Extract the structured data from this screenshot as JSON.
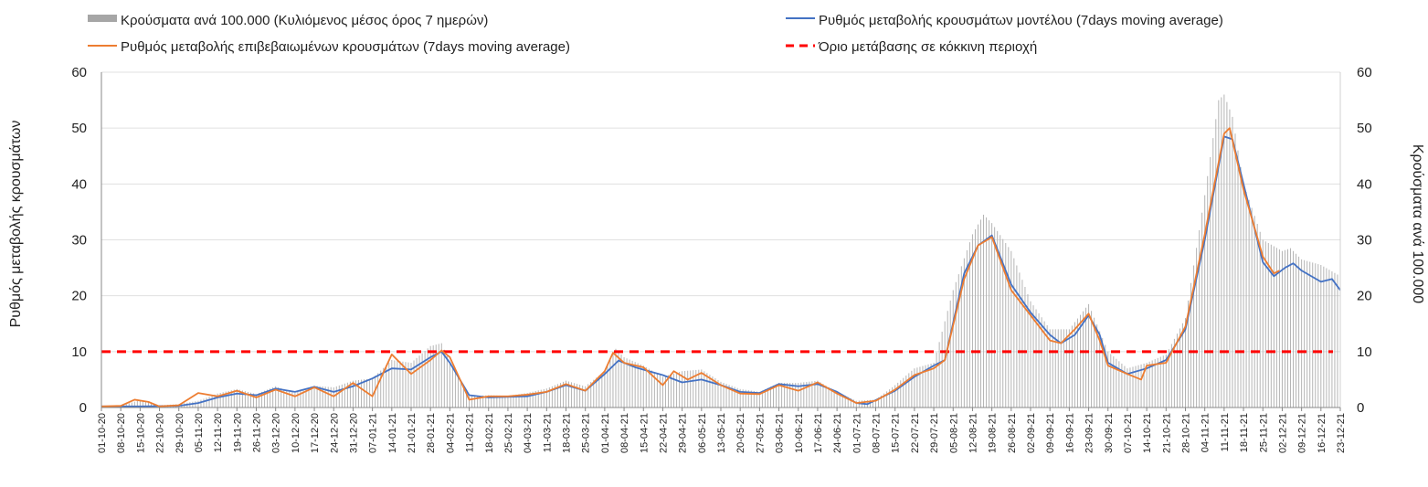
{
  "chart_data": {
    "type": "bar+line",
    "legend": [
      {
        "label": "Κρούσματα ανά 100.000 (Κυλιόμενος μέσος όρος 7 ημερών)",
        "kind": "bar",
        "color": "#a6a6a6"
      },
      {
        "label": "Ρυθμός μεταβολής κρουσμάτων μοντέλου (7days moving average)",
        "kind": "line",
        "color": "#4472c4"
      },
      {
        "label": "Ρυθμός μεταβολής επιβεβαιωμένων κρουσμάτων (7days moving average)",
        "kind": "line",
        "color": "#ed7d31"
      },
      {
        "label": "Όριο μετάβασης σε κόκκινη περιοχή",
        "kind": "dashed",
        "color": "#ff0000"
      }
    ],
    "ylabel_left": "Ρυθμός μεταβολής κρουσμάτων",
    "ylabel_right": "Κρούσματα ανά 100.000",
    "ylim": [
      0,
      60
    ],
    "yticks": [
      0,
      10,
      20,
      30,
      40,
      50,
      60
    ],
    "threshold": 10,
    "date_start": "2020-10-01",
    "date_end": "2021-12-23",
    "x_tick_labels": [
      "01-10-20",
      "08-10-20",
      "15-10-20",
      "22-10-20",
      "29-10-20",
      "05-11-20",
      "12-11-20",
      "19-11-20",
      "26-11-20",
      "03-12-20",
      "10-12-20",
      "17-12-20",
      "24-12-20",
      "31-12-20",
      "07-01-21",
      "14-01-21",
      "21-01-21",
      "28-01-21",
      "04-02-21",
      "11-02-21",
      "18-02-21",
      "25-02-21",
      "04-03-21",
      "11-03-21",
      "18-03-21",
      "25-03-21",
      "01-04-21",
      "08-04-21",
      "15-04-21",
      "22-04-21",
      "29-04-21",
      "06-05-21",
      "13-05-21",
      "20-05-21",
      "27-05-21",
      "03-06-21",
      "10-06-21",
      "17-06-21",
      "24-06-21",
      "01-07-21",
      "08-07-21",
      "15-07-21",
      "22-07-21",
      "29-07-21",
      "05-08-21",
      "12-08-21",
      "19-08-21",
      "26-08-21",
      "02-09-21",
      "09-09-21",
      "16-09-21",
      "23-09-21",
      "30-09-21",
      "07-10-21",
      "14-10-21",
      "21-10-21",
      "28-10-21",
      "04-11-21",
      "11-11-21",
      "18-11-21",
      "25-11-21",
      "02-12-21",
      "09-12-21",
      "16-12-21",
      "23-12-21"
    ],
    "series": [
      {
        "name": "Κρούσματα ανά 100.000 (Κυλιόμενος μέσος όρος 7 ημερών)",
        "kind": "bar",
        "points": [
          [
            "2020-10-01",
            0.3
          ],
          [
            "2020-10-08",
            0.4
          ],
          [
            "2020-10-15",
            1.3
          ],
          [
            "2020-10-22",
            0.4
          ],
          [
            "2020-10-29",
            0.6
          ],
          [
            "2020-11-05",
            1.2
          ],
          [
            "2020-11-12",
            2.5
          ],
          [
            "2020-11-19",
            3.3
          ],
          [
            "2020-11-26",
            2.4
          ],
          [
            "2020-12-03",
            3.8
          ],
          [
            "2020-12-10",
            2.6
          ],
          [
            "2020-12-17",
            3.9
          ],
          [
            "2020-12-24",
            3.6
          ],
          [
            "2020-12-31",
            4.8
          ],
          [
            "2021-01-07",
            5.2
          ],
          [
            "2021-01-14",
            8.5
          ],
          [
            "2021-01-21",
            8.0
          ],
          [
            "2021-01-28",
            11.0
          ],
          [
            "2021-02-01",
            11.5
          ],
          [
            "2021-02-04",
            8.0
          ],
          [
            "2021-02-11",
            2.0
          ],
          [
            "2021-02-18",
            2.2
          ],
          [
            "2021-02-25",
            2.1
          ],
          [
            "2021-03-04",
            2.6
          ],
          [
            "2021-03-11",
            3.4
          ],
          [
            "2021-03-18",
            4.8
          ],
          [
            "2021-03-25",
            3.8
          ],
          [
            "2021-04-01",
            6.5
          ],
          [
            "2021-04-05",
            10.5
          ],
          [
            "2021-04-08",
            9.0
          ],
          [
            "2021-04-15",
            7.5
          ],
          [
            "2021-04-22",
            5.5
          ],
          [
            "2021-04-29",
            6.5
          ],
          [
            "2021-05-06",
            6.8
          ],
          [
            "2021-05-13",
            4.6
          ],
          [
            "2021-05-20",
            3.3
          ],
          [
            "2021-05-27",
            2.8
          ],
          [
            "2021-06-03",
            4.4
          ],
          [
            "2021-06-10",
            4.4
          ],
          [
            "2021-06-17",
            4.8
          ],
          [
            "2021-06-24",
            2.8
          ],
          [
            "2021-07-01",
            1.2
          ],
          [
            "2021-07-08",
            1.4
          ],
          [
            "2021-07-15",
            4.0
          ],
          [
            "2021-07-22",
            7.0
          ],
          [
            "2021-07-29",
            8.0
          ],
          [
            "2021-08-05",
            21.0
          ],
          [
            "2021-08-12",
            31.0
          ],
          [
            "2021-08-16",
            34.5
          ],
          [
            "2021-08-19",
            33.0
          ],
          [
            "2021-08-26",
            28.0
          ],
          [
            "2021-09-02",
            19.0
          ],
          [
            "2021-09-09",
            14.0
          ],
          [
            "2021-09-16",
            14.0
          ],
          [
            "2021-09-23",
            18.5
          ],
          [
            "2021-09-30",
            10.0
          ],
          [
            "2021-10-07",
            7.0
          ],
          [
            "2021-10-14",
            8.0
          ],
          [
            "2021-10-21",
            9.5
          ],
          [
            "2021-10-28",
            16.0
          ],
          [
            "2021-11-04",
            38.0
          ],
          [
            "2021-11-09",
            55.0
          ],
          [
            "2021-11-11",
            56.0
          ],
          [
            "2021-11-14",
            52.0
          ],
          [
            "2021-11-18",
            40.0
          ],
          [
            "2021-11-25",
            30.0
          ],
          [
            "2021-12-02",
            28.0
          ],
          [
            "2021-12-05",
            28.5
          ],
          [
            "2021-12-09",
            26.5
          ],
          [
            "2021-12-16",
            25.5
          ],
          [
            "2021-12-23",
            23.5
          ]
        ]
      },
      {
        "name": "Ρυθμός μεταβολής κρουσμάτων μοντέλου (7days moving average)",
        "kind": "line",
        "points": [
          [
            "2020-10-01",
            0.2
          ],
          [
            "2020-10-15",
            0.2
          ],
          [
            "2020-10-29",
            0.3
          ],
          [
            "2020-11-05",
            0.8
          ],
          [
            "2020-11-12",
            1.8
          ],
          [
            "2020-11-19",
            2.5
          ],
          [
            "2020-11-26",
            2.2
          ],
          [
            "2020-12-03",
            3.4
          ],
          [
            "2020-12-10",
            2.8
          ],
          [
            "2020-12-17",
            3.7
          ],
          [
            "2020-12-24",
            2.8
          ],
          [
            "2020-12-31",
            3.8
          ],
          [
            "2021-01-07",
            5.2
          ],
          [
            "2021-01-14",
            7.0
          ],
          [
            "2021-01-21",
            6.8
          ],
          [
            "2021-01-28",
            9.0
          ],
          [
            "2021-02-01",
            10.0
          ],
          [
            "2021-02-04",
            8.0
          ],
          [
            "2021-02-11",
            2.2
          ],
          [
            "2021-02-18",
            1.8
          ],
          [
            "2021-02-25",
            1.9
          ],
          [
            "2021-03-04",
            2.0
          ],
          [
            "2021-03-11",
            2.8
          ],
          [
            "2021-03-18",
            4.0
          ],
          [
            "2021-03-25",
            3.0
          ],
          [
            "2021-04-01",
            6.0
          ],
          [
            "2021-04-06",
            8.4
          ],
          [
            "2021-04-12",
            7.2
          ],
          [
            "2021-04-22",
            5.8
          ],
          [
            "2021-04-29",
            4.5
          ],
          [
            "2021-05-06",
            5.0
          ],
          [
            "2021-05-13",
            4.0
          ],
          [
            "2021-05-20",
            2.8
          ],
          [
            "2021-05-27",
            2.6
          ],
          [
            "2021-06-03",
            4.2
          ],
          [
            "2021-06-10",
            3.8
          ],
          [
            "2021-06-17",
            4.2
          ],
          [
            "2021-06-24",
            2.8
          ],
          [
            "2021-07-01",
            0.8
          ],
          [
            "2021-07-05",
            0.6
          ],
          [
            "2021-07-15",
            3.0
          ],
          [
            "2021-07-22",
            5.5
          ],
          [
            "2021-07-29",
            7.5
          ],
          [
            "2021-08-02",
            8.5
          ],
          [
            "2021-08-09",
            24.0
          ],
          [
            "2021-08-14",
            29.0
          ],
          [
            "2021-08-19",
            30.8
          ],
          [
            "2021-08-26",
            22.0
          ],
          [
            "2021-09-02",
            17.0
          ],
          [
            "2021-09-09",
            13.0
          ],
          [
            "2021-09-13",
            11.5
          ],
          [
            "2021-09-18",
            13.0
          ],
          [
            "2021-09-23",
            16.5
          ],
          [
            "2021-09-27",
            13.0
          ],
          [
            "2021-09-30",
            8.0
          ],
          [
            "2021-10-07",
            6.0
          ],
          [
            "2021-10-14",
            7.0
          ],
          [
            "2021-10-21",
            8.5
          ],
          [
            "2021-10-28",
            14.0
          ],
          [
            "2021-11-04",
            30.0
          ],
          [
            "2021-11-11",
            48.5
          ],
          [
            "2021-11-14",
            48.0
          ],
          [
            "2021-11-18",
            40.0
          ],
          [
            "2021-11-25",
            26.0
          ],
          [
            "2021-11-29",
            23.5
          ],
          [
            "2021-12-03",
            25.0
          ],
          [
            "2021-12-06",
            25.8
          ],
          [
            "2021-12-09",
            24.5
          ],
          [
            "2021-12-16",
            22.5
          ],
          [
            "2021-12-20",
            23.0
          ],
          [
            "2021-12-23",
            21.0
          ]
        ]
      },
      {
        "name": "Ρυθμός μεταβολής επιβεβαιωμένων κρουσμάτων (7days moving average)",
        "kind": "line",
        "points": [
          [
            "2020-10-01",
            0.2
          ],
          [
            "2020-10-08",
            0.3
          ],
          [
            "2020-10-13",
            1.4
          ],
          [
            "2020-10-18",
            1.0
          ],
          [
            "2020-10-22",
            0.2
          ],
          [
            "2020-10-29",
            0.4
          ],
          [
            "2020-11-05",
            2.6
          ],
          [
            "2020-11-12",
            2.0
          ],
          [
            "2020-11-19",
            3.0
          ],
          [
            "2020-11-26",
            1.8
          ],
          [
            "2020-12-03",
            3.2
          ],
          [
            "2020-12-10",
            2.0
          ],
          [
            "2020-12-17",
            3.6
          ],
          [
            "2020-12-24",
            2.0
          ],
          [
            "2020-12-31",
            4.4
          ],
          [
            "2021-01-07",
            2.0
          ],
          [
            "2021-01-14",
            9.5
          ],
          [
            "2021-01-21",
            6.0
          ],
          [
            "2021-01-28",
            8.5
          ],
          [
            "2021-02-01",
            10.2
          ],
          [
            "2021-02-04",
            9.0
          ],
          [
            "2021-02-11",
            1.4
          ],
          [
            "2021-02-18",
            2.0
          ],
          [
            "2021-02-25",
            2.0
          ],
          [
            "2021-03-04",
            2.3
          ],
          [
            "2021-03-11",
            2.8
          ],
          [
            "2021-03-18",
            4.2
          ],
          [
            "2021-03-25",
            3.0
          ],
          [
            "2021-04-01",
            6.5
          ],
          [
            "2021-04-04",
            9.8
          ],
          [
            "2021-04-08",
            8.0
          ],
          [
            "2021-04-15",
            7.2
          ],
          [
            "2021-04-22",
            4.0
          ],
          [
            "2021-04-26",
            6.5
          ],
          [
            "2021-05-01",
            5.0
          ],
          [
            "2021-05-06",
            6.2
          ],
          [
            "2021-05-13",
            4.0
          ],
          [
            "2021-05-20",
            2.5
          ],
          [
            "2021-05-27",
            2.4
          ],
          [
            "2021-06-03",
            4.0
          ],
          [
            "2021-06-10",
            3.0
          ],
          [
            "2021-06-17",
            4.5
          ],
          [
            "2021-06-24",
            2.5
          ],
          [
            "2021-07-01",
            0.8
          ],
          [
            "2021-07-08",
            1.2
          ],
          [
            "2021-07-15",
            3.2
          ],
          [
            "2021-07-22",
            5.8
          ],
          [
            "2021-07-29",
            7.0
          ],
          [
            "2021-08-02",
            8.5
          ],
          [
            "2021-08-09",
            23.0
          ],
          [
            "2021-08-14",
            29.0
          ],
          [
            "2021-08-19",
            30.5
          ],
          [
            "2021-08-26",
            21.0
          ],
          [
            "2021-09-02",
            16.5
          ],
          [
            "2021-09-09",
            12.0
          ],
          [
            "2021-09-13",
            11.5
          ],
          [
            "2021-09-18",
            14.0
          ],
          [
            "2021-09-23",
            16.8
          ],
          [
            "2021-09-27",
            12.0
          ],
          [
            "2021-09-30",
            7.5
          ],
          [
            "2021-10-07",
            6.0
          ],
          [
            "2021-10-12",
            5.0
          ],
          [
            "2021-10-14",
            7.5
          ],
          [
            "2021-10-21",
            8.0
          ],
          [
            "2021-10-28",
            14.5
          ],
          [
            "2021-11-04",
            31.0
          ],
          [
            "2021-11-11",
            49.0
          ],
          [
            "2021-11-13",
            50.0
          ],
          [
            "2021-11-18",
            39.0
          ],
          [
            "2021-11-25",
            27.0
          ],
          [
            "2021-11-29",
            24.0
          ],
          [
            "2021-12-01",
            24.5
          ]
        ]
      }
    ]
  }
}
